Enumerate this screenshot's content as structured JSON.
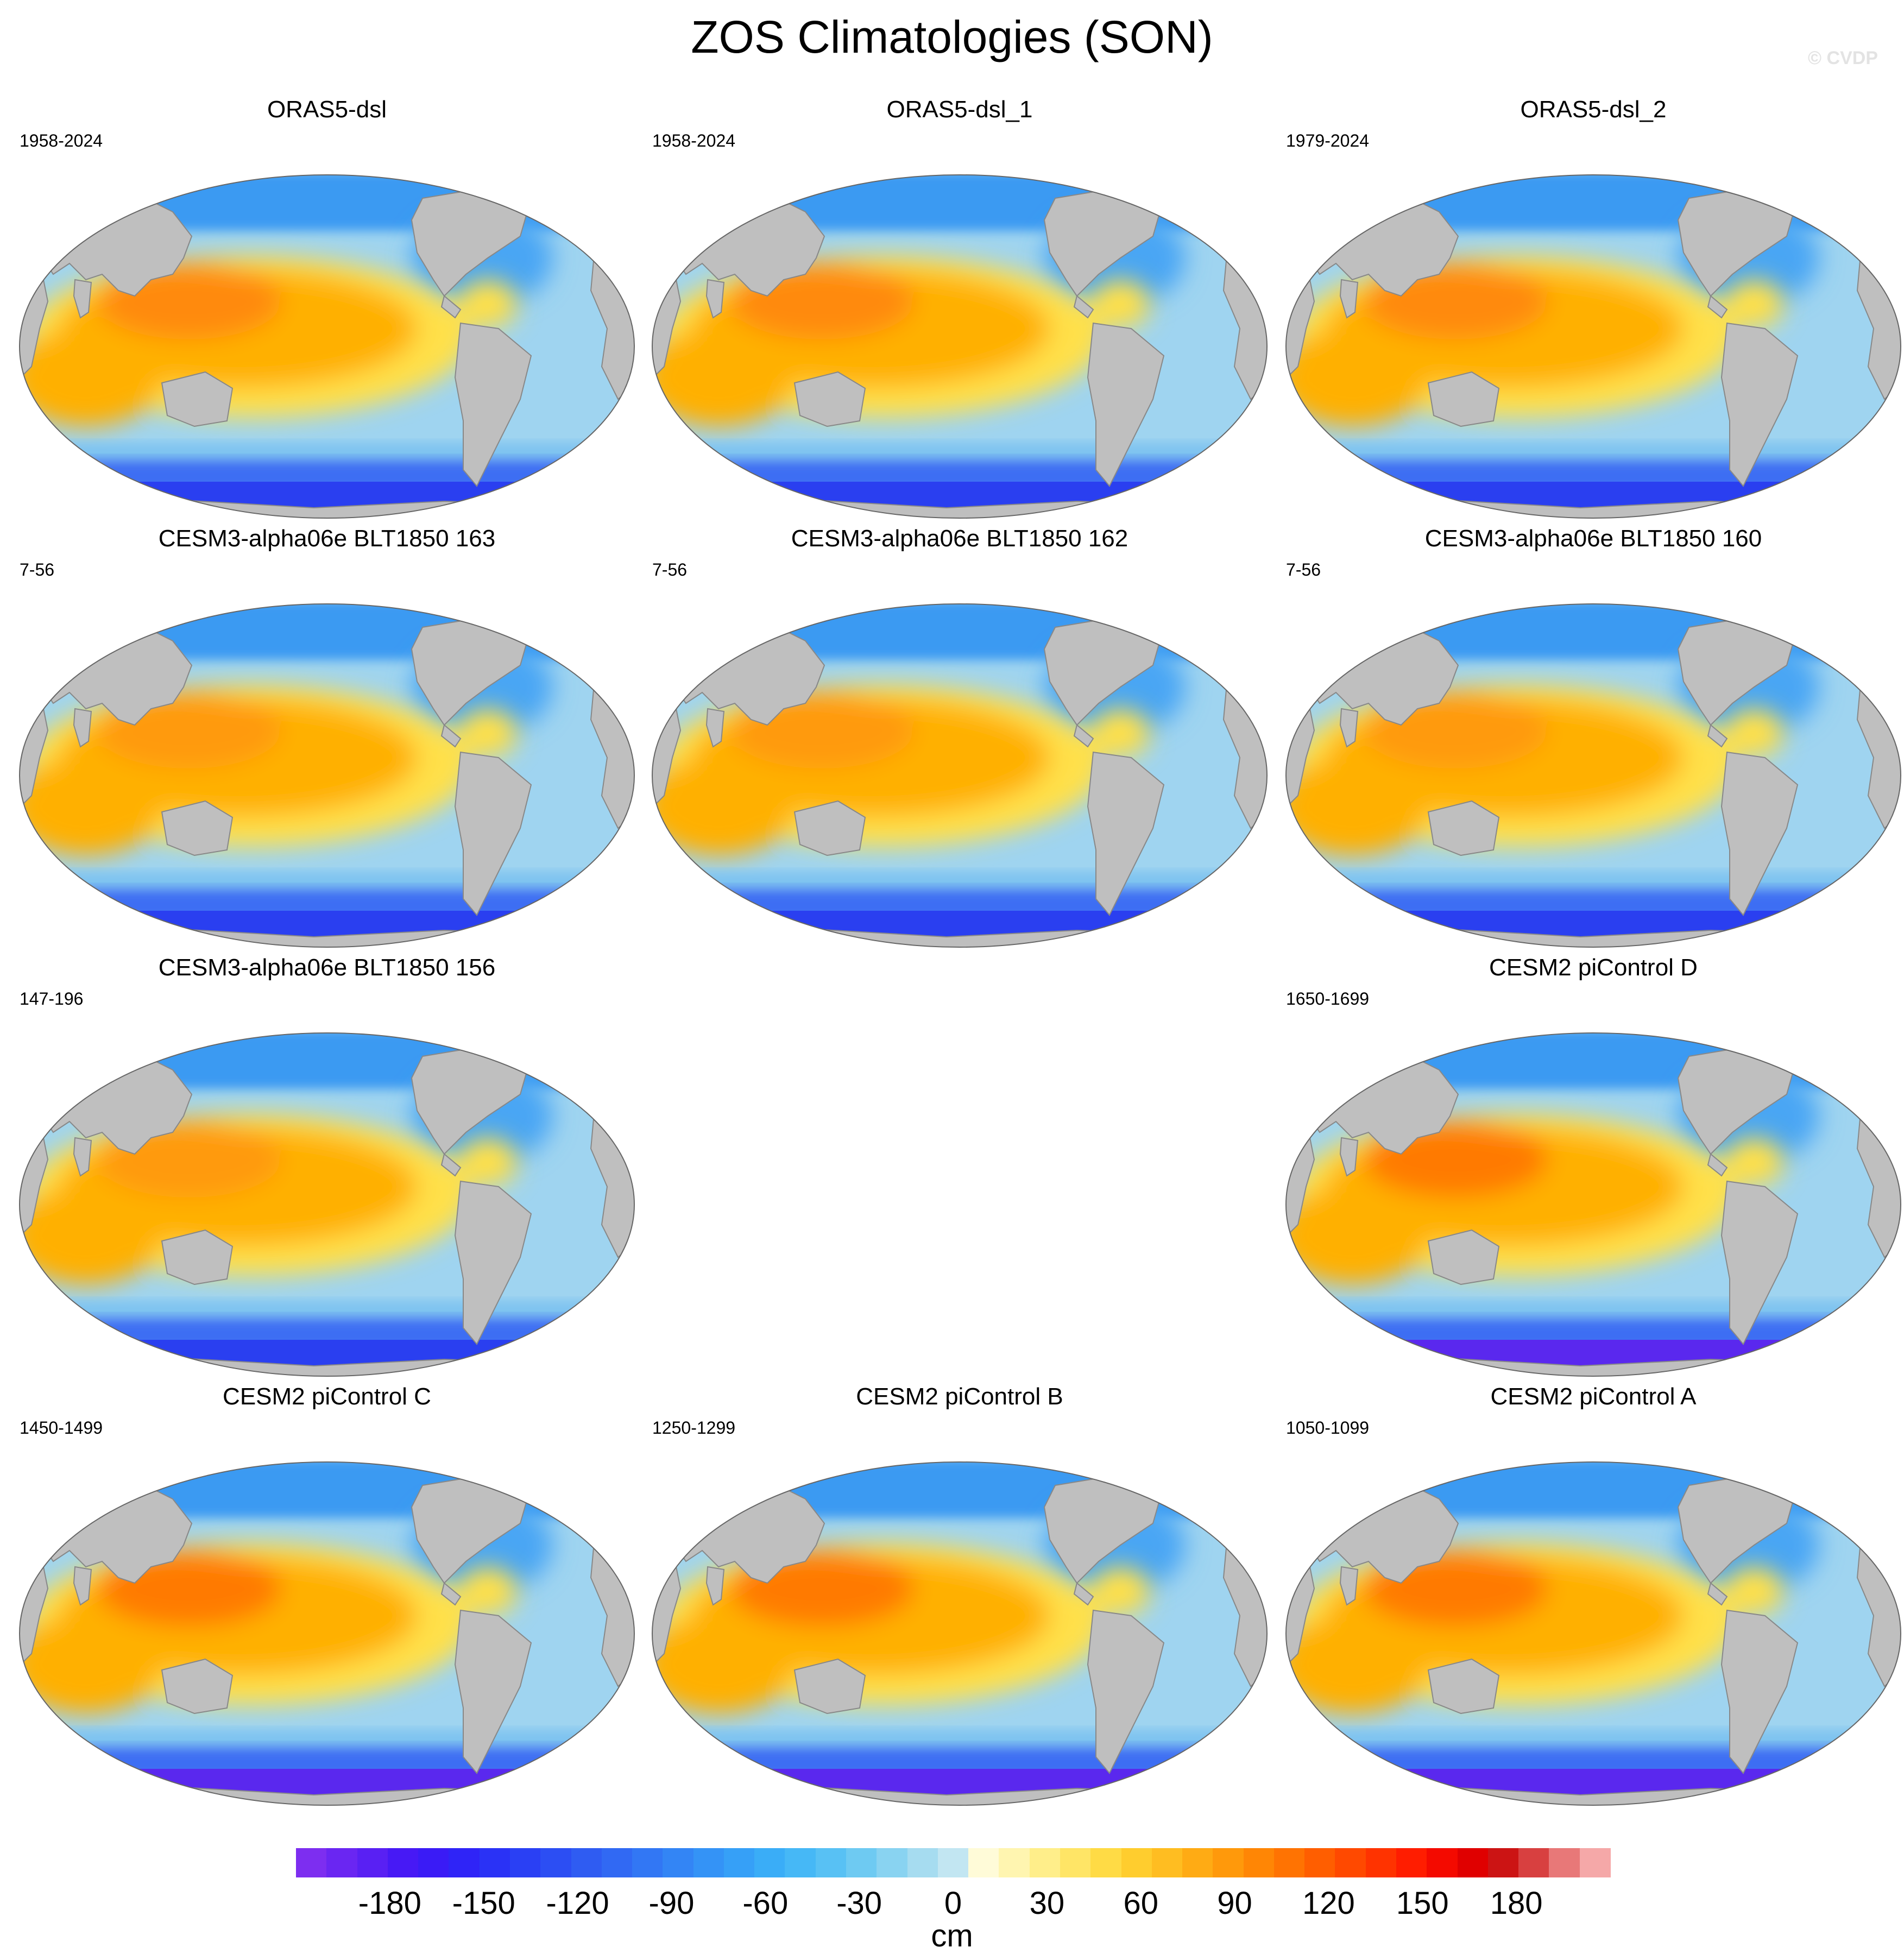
{
  "figure": {
    "title": "ZOS Climatologies (SON)",
    "credit": "© CVDP",
    "units": "cm"
  },
  "panels": [
    {
      "name": "ORAS5-dsl",
      "years": "1958-2024",
      "style": "obs"
    },
    {
      "name": "ORAS5-dsl_1",
      "years": "1958-2024",
      "style": "obs"
    },
    {
      "name": "ORAS5-dsl_2",
      "years": "1979-2024",
      "style": "obs"
    },
    {
      "name": "CESM3-alpha06e BLT1850 163",
      "years": "7-56",
      "style": "cesm3"
    },
    {
      "name": "CESM3-alpha06e BLT1850 162",
      "years": "7-56",
      "style": "cesm3"
    },
    {
      "name": "CESM3-alpha06e BLT1850 160",
      "years": "7-56",
      "style": "cesm3"
    },
    {
      "name": "CESM3-alpha06e BLT1850 156",
      "years": "147-196",
      "style": "cesm3"
    },
    {
      "name": "CESM2 piControl D",
      "years": "1650-1699",
      "style": "cesm2"
    },
    {
      "name": "CESM2 piControl C",
      "years": "1450-1499",
      "style": "cesm2"
    },
    {
      "name": "CESM2 piControl B",
      "years": "1250-1299",
      "style": "cesm2"
    },
    {
      "name": "CESM2 piControl A",
      "years": "1050-1099",
      "style": "cesm2"
    }
  ],
  "colorbar": {
    "tick_labels": [
      "-180",
      "-150",
      "-120",
      "-90",
      "-60",
      "-30",
      "0",
      "30",
      "60",
      "90",
      "120",
      "150",
      "180"
    ],
    "tick_values": [
      -180,
      -150,
      -120,
      -90,
      -60,
      -30,
      0,
      30,
      60,
      90,
      120,
      150,
      180
    ],
    "min": -210,
    "max": 210,
    "step": 10,
    "colors": [
      "#7d2ef0",
      "#6a26f2",
      "#5920f3",
      "#4719f5",
      "#3a1bf6",
      "#2f24f7",
      "#2a32f6",
      "#2a40f4",
      "#2c4ef3",
      "#2f5cf2",
      "#3169f3",
      "#3277f4",
      "#3385f5",
      "#3493f6",
      "#36a0f7",
      "#3aadf7",
      "#46b8f6",
      "#58c1f4",
      "#6ecaf2",
      "#89d3f1",
      "#a6dcf0",
      "#c2e6f2",
      "#fffbd8",
      "#fff5b0",
      "#ffee8a",
      "#ffe566",
      "#ffdb45",
      "#ffcd2e",
      "#ffbd21",
      "#ffab14",
      "#ff990b",
      "#ff8605",
      "#ff7302",
      "#ff5e00",
      "#ff4900",
      "#ff3300",
      "#ff1d00",
      "#f40a00",
      "#e00000",
      "#cc1414",
      "#d84040",
      "#e87878",
      "#f5a8a8"
    ]
  },
  "colors": {
    "land": "#bfbfbf",
    "coast": "#888888",
    "warm_max": "#ff7a00",
    "warm_mid": "#ffb000",
    "warm_low": "#ffe04a",
    "cool_mid": "#9fd4f0",
    "cool_strong": "#3a9af2",
    "south_ring": "#2a3ff0",
    "south_deep": "#5a28ee"
  }
}
